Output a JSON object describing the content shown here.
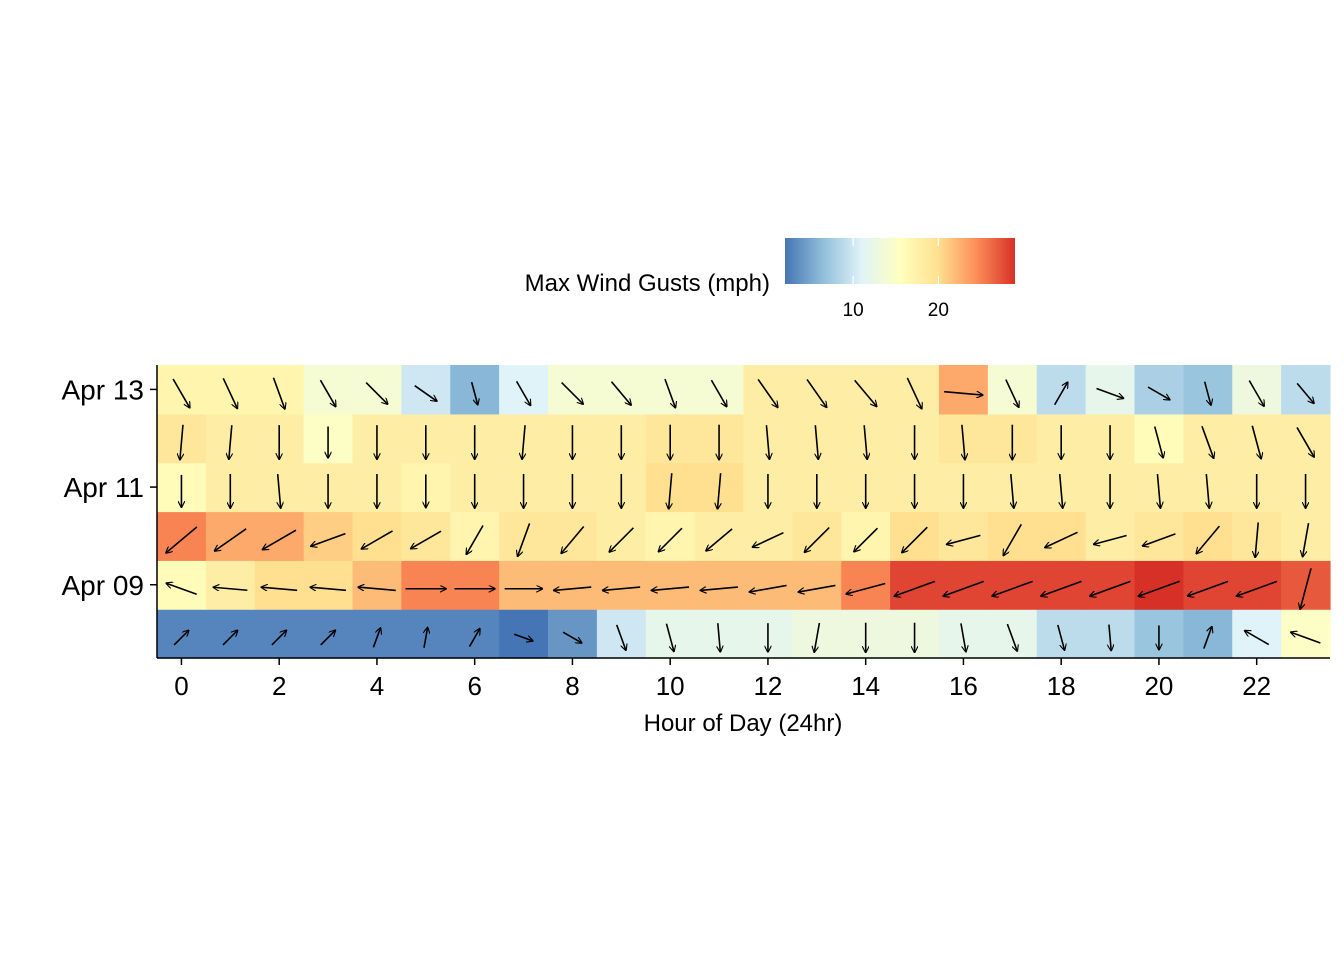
{
  "chart_data": {
    "type": "heatmap",
    "title": "",
    "xlabel": "Hour of Day (24hr)",
    "ylabel": "",
    "x": [
      0,
      1,
      2,
      3,
      4,
      5,
      6,
      7,
      8,
      9,
      10,
      11,
      12,
      13,
      14,
      15,
      16,
      17,
      18,
      19,
      20,
      21,
      22,
      23
    ],
    "xlim": [
      -0.5,
      23.5
    ],
    "x_ticks": [
      "0",
      "2",
      "4",
      "6",
      "8",
      "10",
      "12",
      "14",
      "16",
      "18",
      "20",
      "22"
    ],
    "dates": [
      "Apr 08",
      "Apr 09",
      "Apr 10",
      "Apr 11",
      "Apr 12",
      "Apr 13"
    ],
    "y_ticks": [
      "Apr 09",
      "Apr 11",
      "Apr 13"
    ],
    "grid": false,
    "legend": {
      "title": "Max Wind Gusts (mph)",
      "position": "top",
      "ticks": [
        "10",
        "20"
      ],
      "range_mph": [
        2,
        29
      ],
      "colors": [
        "#4575b4",
        "#91bfdb",
        "#e0f3f8",
        "#ffffbf",
        "#fee090",
        "#fc8d59",
        "#d73027"
      ]
    },
    "series": [
      {
        "date": "Apr 08",
        "gust_mph": [
          3,
          3,
          3,
          3,
          3,
          3,
          3,
          2,
          4,
          10,
          12,
          12,
          12,
          13,
          13,
          13,
          12,
          12,
          9,
          9,
          7,
          6,
          11,
          15
        ],
        "wind_dir_deg": [
          225,
          225,
          225,
          225,
          200,
          190,
          210,
          290,
          300,
          340,
          345,
          355,
          0,
          10,
          0,
          0,
          350,
          340,
          345,
          355,
          0,
          200,
          120,
          110
        ]
      },
      {
        "date": "Apr 09",
        "gust_mph": [
          16,
          18,
          20,
          20,
          22,
          25,
          25,
          22,
          22,
          22,
          22,
          22,
          22,
          22,
          25,
          28,
          28,
          28,
          28,
          28,
          29,
          28,
          28,
          27
        ],
        "wind_dir_deg": [
          110,
          95,
          95,
          95,
          95,
          270,
          270,
          270,
          85,
          85,
          85,
          85,
          80,
          80,
          75,
          70,
          70,
          70,
          70,
          70,
          70,
          70,
          70,
          15
        ]
      },
      {
        "date": "Apr 10",
        "gust_mph": [
          25,
          23,
          23,
          21,
          20,
          19,
          17,
          19,
          19,
          18,
          17,
          18,
          18,
          19,
          17,
          20,
          19,
          20,
          20,
          18,
          19,
          20,
          19,
          18
        ],
        "wind_dir_deg": [
          50,
          55,
          60,
          70,
          60,
          60,
          30,
          20,
          40,
          45,
          45,
          50,
          65,
          45,
          45,
          45,
          75,
          30,
          65,
          75,
          70,
          40,
          5,
          10
        ]
      },
      {
        "date": "Apr 11",
        "gust_mph": [
          16,
          18,
          18,
          18,
          18,
          17,
          18,
          18,
          18,
          18,
          20,
          20,
          18,
          18,
          18,
          18,
          18,
          18,
          18,
          18,
          18,
          18,
          18,
          18
        ],
        "wind_dir_deg": [
          0,
          0,
          355,
          0,
          0,
          0,
          0,
          0,
          0,
          0,
          5,
          5,
          0,
          0,
          0,
          0,
          0,
          355,
          355,
          0,
          355,
          355,
          0,
          0
        ]
      },
      {
        "date": "Apr 12",
        "gust_mph": [
          19,
          18,
          18,
          15,
          18,
          18,
          18,
          18,
          18,
          18,
          19,
          19,
          18,
          18,
          18,
          18,
          19,
          19,
          18,
          18,
          16,
          18,
          18,
          18
        ],
        "wind_dir_deg": [
          5,
          5,
          0,
          0,
          0,
          0,
          0,
          5,
          0,
          0,
          0,
          0,
          355,
          355,
          355,
          0,
          355,
          0,
          0,
          0,
          345,
          340,
          345,
          330
        ]
      },
      {
        "date": "Apr 13",
        "gust_mph": [
          17,
          17,
          17,
          14,
          14,
          10,
          6,
          11,
          14,
          14,
          14,
          14,
          18,
          18,
          18,
          18,
          23,
          14,
          9,
          12,
          8,
          7,
          13,
          9
        ],
        "wind_dir_deg": [
          330,
          335,
          340,
          330,
          315,
          305,
          345,
          330,
          315,
          320,
          340,
          330,
          325,
          325,
          320,
          335,
          275,
          335,
          210,
          290,
          300,
          345,
          330,
          320
        ]
      }
    ]
  }
}
